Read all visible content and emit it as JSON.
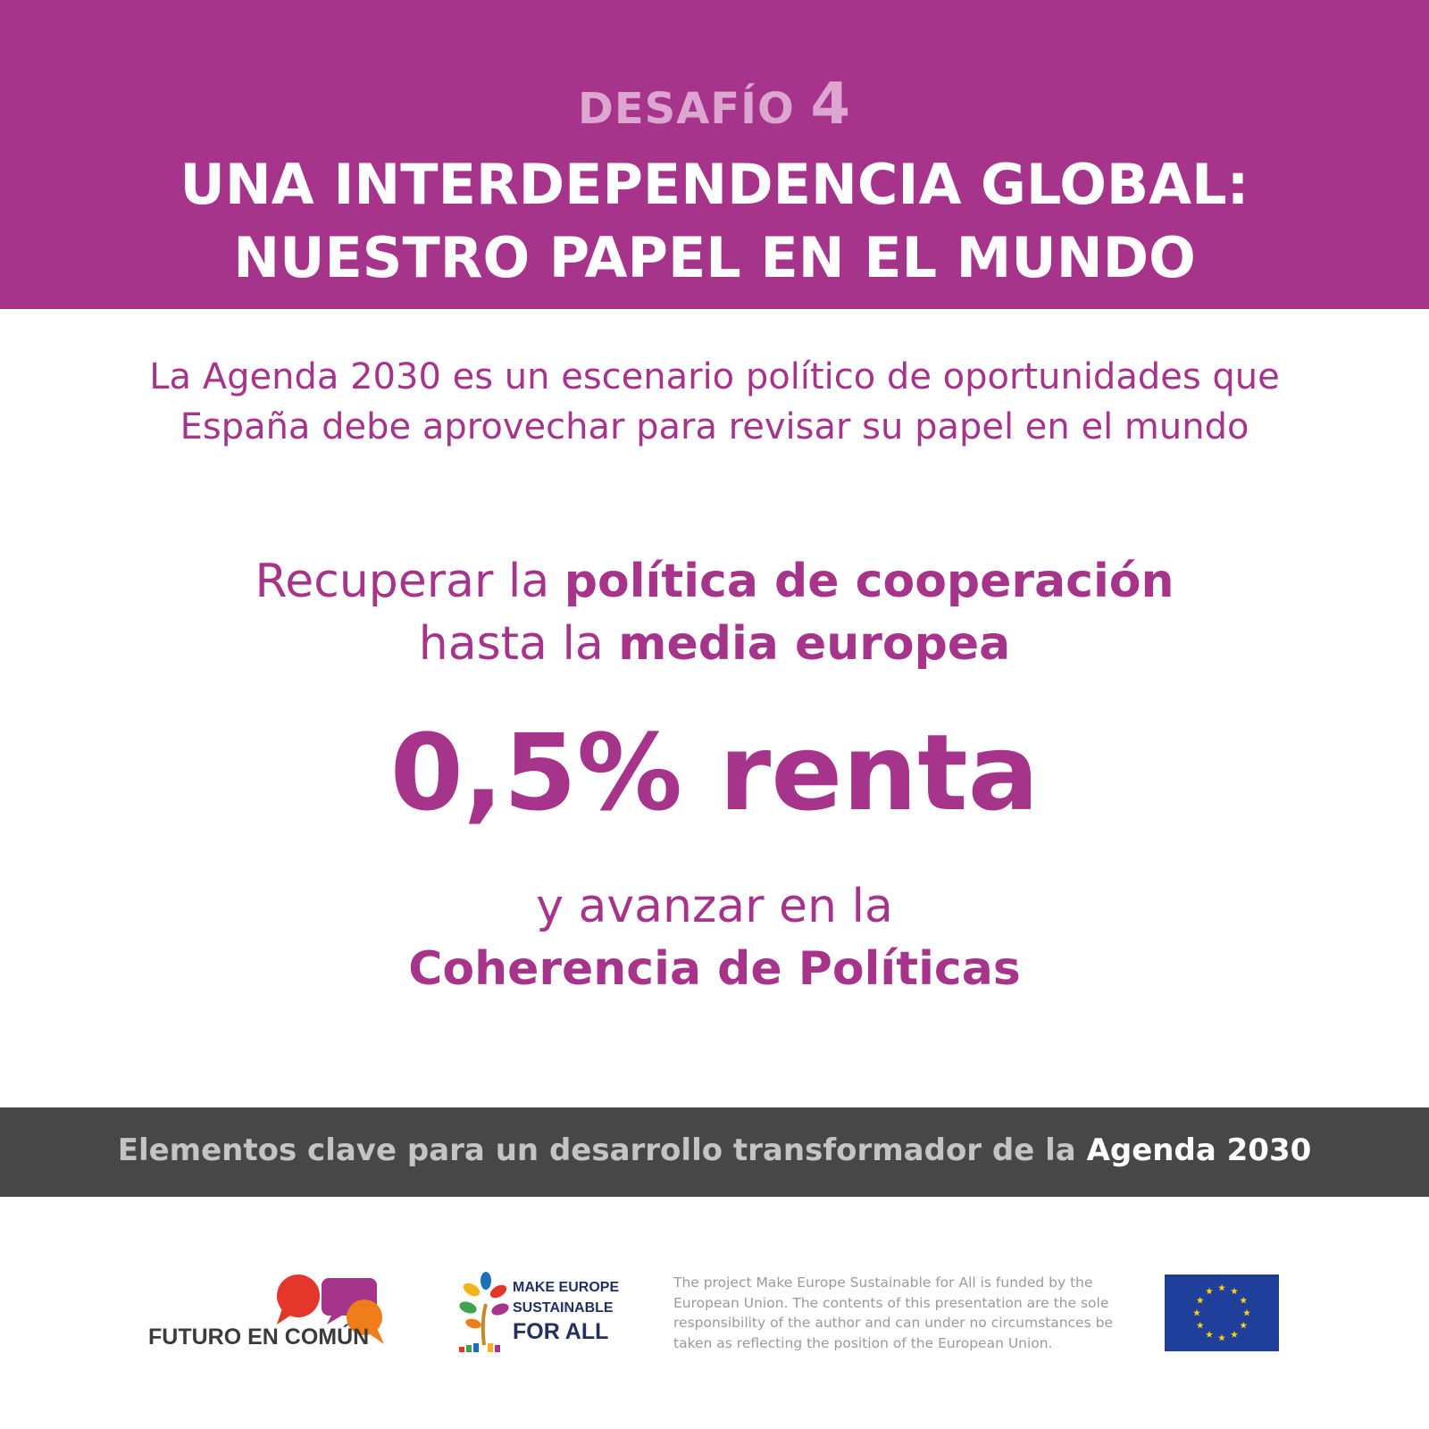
{
  "header": {
    "kicker_label": "DESAFÍO",
    "kicker_number": "4",
    "title_line1": "UNA INTERDEPENDENCIA GLOBAL:",
    "title_line2": "NUESTRO PAPEL EN EL MUNDO",
    "background_color": "#a5348a"
  },
  "intro": {
    "line1": "La Agenda 2030 es un escenario político de oportunidades que",
    "line2": "España debe aprovechar para revisar su papel en el mundo"
  },
  "main": {
    "l1_plain": "Recuperar la ",
    "l1_bold": "política de cooperación",
    "l2_plain": "hasta la ",
    "l2_bold": "media europea",
    "big_figure": "0,5% renta",
    "l3_plain": "y avanzar en la",
    "l4_bold": "Coherencia de Políticas"
  },
  "band": {
    "text_plain": "Elementos clave para un desarrollo transformador de la ",
    "text_highlight": "Agenda 2030",
    "background_color": "#474747"
  },
  "footer": {
    "futuro_logo_text": "FUTURO EN COMÚN",
    "mesfa_line1": "MAKE EUROPE",
    "mesfa_line2": "SUSTAINABLE",
    "mesfa_line3": "FOR ALL",
    "disclaimer_line1": "The project Make Europe Sustainable for All is funded by the",
    "disclaimer_line2": "European Union. The contents of this presentation are the sole",
    "disclaimer_line3": "responsibility of the author and can under no circumstances be",
    "disclaimer_line4": "taken as reflecting the position of the European Union.",
    "eu_flag_icon": "eu-flag-icon"
  }
}
